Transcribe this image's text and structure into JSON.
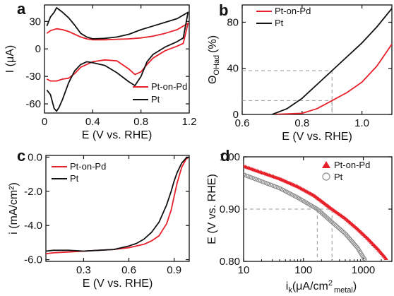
{
  "colors": {
    "red": "#e8202a",
    "black": "#111111",
    "gray": "#8c8c8c",
    "dash": "#9a9a9a"
  },
  "chart_data": [
    {
      "id": "a",
      "panel_label": "a",
      "type": "line",
      "xlabel": "E (V vs. RHE)",
      "ylabel": "I (μA)",
      "xlim": [
        0,
        1.2
      ],
      "ylim": [
        -70,
        48
      ],
      "xticks": [
        0,
        0.4,
        0.8,
        1.2
      ],
      "xtick_labels": [
        "0",
        "0.4",
        "0.8",
        "1.2"
      ],
      "yticks": [
        -60,
        -30,
        0,
        30
      ],
      "ytick_labels": [
        "-60",
        "-30",
        "0",
        "30"
      ],
      "legend": {
        "position": "bottom-right",
        "entries": [
          "Pt-on-Pd",
          "Pt"
        ]
      },
      "series": [
        {
          "name": "Pt-on-Pd",
          "color": "red",
          "x": [
            0.02,
            0.05,
            0.1,
            0.15,
            0.2,
            0.25,
            0.3,
            0.35,
            0.4,
            0.5,
            0.6,
            0.7,
            0.8,
            0.9,
            1.0,
            1.1,
            1.19,
            1.15,
            1.1,
            1.0,
            0.9,
            0.85,
            0.8,
            0.75,
            0.7,
            0.6,
            0.5,
            0.4,
            0.3,
            0.25,
            0.2,
            0.15,
            0.1,
            0.05,
            0.02
          ],
          "y": [
            17,
            20,
            22,
            21,
            19,
            16,
            13,
            11,
            10,
            10,
            10.5,
            11,
            12,
            14,
            17,
            21,
            28,
            6,
            3,
            -2,
            -10,
            -17,
            -25,
            -28,
            -22,
            -13,
            -12,
            -14,
            -20,
            -27,
            -32,
            -33,
            -35,
            -35,
            -33
          ]
        },
        {
          "name": "Pt",
          "color": "black",
          "x": [
            0.02,
            0.05,
            0.08,
            0.1,
            0.12,
            0.15,
            0.2,
            0.25,
            0.3,
            0.35,
            0.4,
            0.5,
            0.6,
            0.7,
            0.8,
            0.9,
            1.0,
            1.1,
            1.19,
            1.15,
            1.1,
            1.0,
            0.9,
            0.85,
            0.8,
            0.75,
            0.7,
            0.6,
            0.5,
            0.4,
            0.35,
            0.3,
            0.25,
            0.2,
            0.15,
            0.12,
            0.1,
            0.08,
            0.05,
            0.02
          ],
          "y": [
            25,
            35,
            40,
            45,
            43,
            40,
            34,
            26,
            17,
            13,
            11,
            11.5,
            13,
            16,
            21,
            25,
            29,
            33,
            40,
            12,
            8,
            2,
            -6,
            -14,
            -30,
            -40,
            -36,
            -26,
            -18,
            -15,
            -14,
            -17,
            -24,
            -37,
            -55,
            -64,
            -68,
            -65,
            -50,
            -45
          ]
        }
      ]
    },
    {
      "id": "b",
      "panel_label": "b",
      "type": "line",
      "xlabel": "E (V vs. RHE)",
      "ylabel_main": "Θ",
      "ylabel_sub": "OHad",
      "ylabel_unit": "(%)",
      "xlim": [
        0.6,
        1.1
      ],
      "ylim": [
        0,
        95
      ],
      "xticks": [
        0.6,
        0.8,
        1.0
      ],
      "xtick_labels": [
        "0.6",
        "0.8",
        "1.0"
      ],
      "yticks": [
        0,
        40,
        80
      ],
      "ytick_labels": [
        "0",
        "40",
        "80"
      ],
      "legend": {
        "position": "top-left",
        "entries": [
          "Pt-on-Pd",
          "Pt"
        ]
      },
      "guides": [
        {
          "x": 0.9,
          "y": 38
        },
        {
          "x": 0.9,
          "y": 12
        }
      ],
      "series": [
        {
          "name": "Pt-on-Pd",
          "color": "red",
          "x": [
            0.7,
            0.8,
            0.85,
            0.9,
            0.95,
            1.0,
            1.05,
            1.1
          ],
          "y": [
            0,
            1,
            5,
            12,
            19,
            28,
            42,
            61
          ]
        },
        {
          "name": "Pt",
          "color": "black",
          "x": [
            0.7,
            0.75,
            0.8,
            0.85,
            0.9,
            0.95,
            1.0,
            1.05,
            1.1
          ],
          "y": [
            0,
            5,
            14,
            26,
            38,
            50,
            62,
            76,
            92
          ]
        }
      ]
    },
    {
      "id": "c",
      "panel_label": "c",
      "type": "line",
      "xlabel": "E (V vs. RHE)",
      "ylabel": "i (mA/cm²)",
      "xlim": [
        0.05,
        1.0
      ],
      "ylim": [
        -6.1,
        0.1
      ],
      "xticks": [
        0.3,
        0.6,
        0.9
      ],
      "xtick_labels": [
        "0.3",
        "0.6",
        "0.9"
      ],
      "yticks": [
        -6.0,
        -4.0,
        -2.0,
        0.0
      ],
      "ytick_labels": [
        "-6.0",
        "-4.0",
        "-2.0",
        "0.0"
      ],
      "legend": {
        "position": "top-left",
        "entries": [
          "Pt-on-Pd",
          "Pt"
        ]
      },
      "series": [
        {
          "name": "Pt-on-Pd",
          "color": "red",
          "x": [
            0.05,
            0.1,
            0.2,
            0.3,
            0.4,
            0.5,
            0.6,
            0.7,
            0.75,
            0.8,
            0.85,
            0.88,
            0.9,
            0.92,
            0.95,
            0.98,
            1.0
          ],
          "y": [
            -5.65,
            -5.6,
            -5.55,
            -5.5,
            -5.45,
            -5.4,
            -5.3,
            -5.1,
            -4.9,
            -4.6,
            -3.9,
            -3.1,
            -2.3,
            -1.5,
            -0.6,
            -0.1,
            0
          ]
        },
        {
          "name": "Pt",
          "color": "black",
          "x": [
            0.05,
            0.1,
            0.2,
            0.3,
            0.4,
            0.5,
            0.6,
            0.65,
            0.7,
            0.75,
            0.8,
            0.85,
            0.88,
            0.9,
            0.92,
            0.95,
            0.98,
            1.0
          ],
          "y": [
            -5.5,
            -5.45,
            -5.45,
            -5.5,
            -5.45,
            -5.4,
            -5.2,
            -5.05,
            -4.8,
            -4.4,
            -3.8,
            -2.8,
            -2.0,
            -1.4,
            -0.9,
            -0.35,
            -0.05,
            0
          ]
        }
      ]
    },
    {
      "id": "d",
      "panel_label": "d",
      "type": "scatter",
      "xscale": "log",
      "xlabel_main": "i",
      "xlabel_sub": "k",
      "xlabel_unit": "(μA/cm",
      "xlabel_sup": "2",
      "xlabel_sub2": "metal",
      "xlabel_close": ")",
      "ylabel": "E (V vs. RHE)",
      "xlim": [
        10,
        3000
      ],
      "ylim": [
        0.8,
        1.0
      ],
      "xticks": [
        10,
        100,
        1000
      ],
      "xtick_labels": [
        "10",
        "100",
        "1000"
      ],
      "yticks": [
        0.8,
        0.9,
        1.0
      ],
      "ytick_labels": [
        "0.80",
        "0.90",
        "1.00"
      ],
      "legend": {
        "position": "top-right",
        "entries": [
          "Pt-on-Pd",
          "Pt"
        ]
      },
      "guides": [
        {
          "x": 170,
          "y": 0.9
        },
        {
          "x": 300,
          "y": 0.9
        }
      ],
      "series": [
        {
          "name": "Pt-on-Pd",
          "color": "red",
          "marker": "triangle",
          "x": [
            10,
            20,
            40,
            80,
            150,
            300,
            500,
            800,
            1200,
            1800,
            2500
          ],
          "y": [
            0.982,
            0.97,
            0.958,
            0.943,
            0.926,
            0.9,
            0.882,
            0.862,
            0.843,
            0.822,
            0.803
          ]
        },
        {
          "name": "Pt",
          "color": "gray",
          "marker": "circle",
          "x": [
            10,
            20,
            40,
            80,
            170,
            300,
            500,
            800,
            1100
          ],
          "y": [
            0.966,
            0.953,
            0.94,
            0.922,
            0.9,
            0.875,
            0.853,
            0.826,
            0.8
          ]
        }
      ]
    }
  ]
}
